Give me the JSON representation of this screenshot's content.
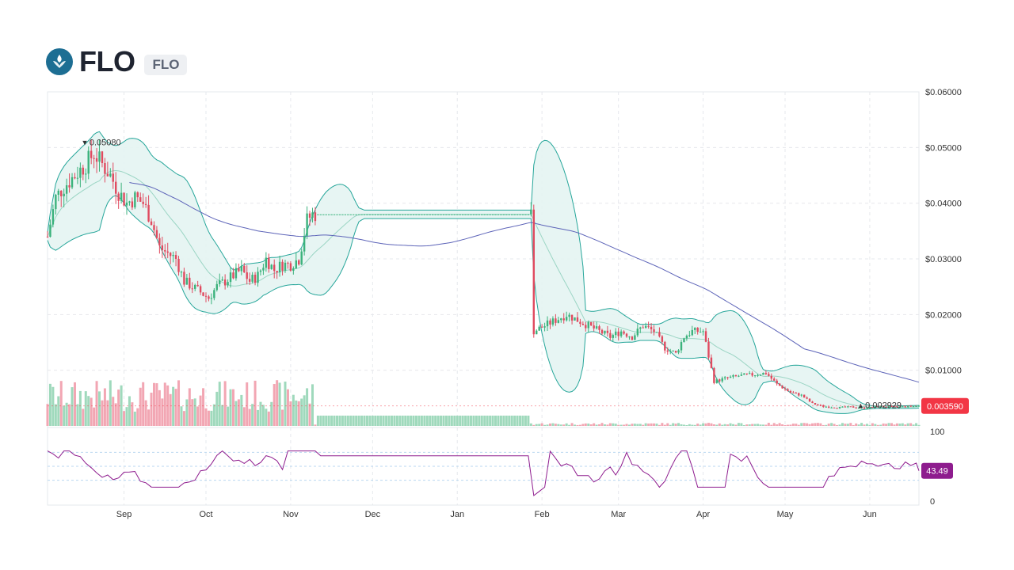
{
  "header": {
    "title": "FLO",
    "ticker": "FLO",
    "logo_icon": "flo-logo-icon"
  },
  "colors": {
    "up": "#3bb27c",
    "down": "#e04a5f",
    "up_volume": "#9fd9bc",
    "down_volume": "#f2a6b3",
    "bollinger": "#26a69a",
    "bollinger_fill": "#e4f4f2",
    "ma_long": "#5c63b8",
    "ma_short": "#9bd5c4",
    "rsi": "#8e1c8e",
    "price_badge": "#f23645",
    "grid": "#e6e8ec"
  },
  "chart_data": {
    "type": "candlestick",
    "price_axis": {
      "ylim": [
        0,
        0.06
      ],
      "ticks": [
        0.06,
        0.05,
        0.04,
        0.03,
        0.02,
        0.01
      ],
      "tick_labels": [
        "$0.06000",
        "$0.05000",
        "$0.04000",
        "$0.03000",
        "$0.02000",
        "$0.01000"
      ]
    },
    "x_axis": {
      "range": [
        "2022-08-04",
        "2023-06-19"
      ],
      "labels": [
        {
          "date": "2022-09-01",
          "text": "Sep"
        },
        {
          "date": "2022-10-01",
          "text": "Oct"
        },
        {
          "date": "2022-11-01",
          "text": "Nov"
        },
        {
          "date": "2022-12-01",
          "text": "Dec"
        },
        {
          "date": "2023-01-01",
          "text": "Jan"
        },
        {
          "date": "2023-02-01",
          "text": "Feb"
        },
        {
          "date": "2023-03-01",
          "text": "Mar"
        },
        {
          "date": "2023-04-01",
          "text": "Apr"
        },
        {
          "date": "2023-05-01",
          "text": "May"
        },
        {
          "date": "2023-06-01",
          "text": "Jun"
        }
      ]
    },
    "price_series": [
      [
        "2022-08-04",
        0.034
      ],
      [
        "2022-08-07",
        0.041
      ],
      [
        "2022-08-10",
        0.043
      ],
      [
        "2022-08-14",
        0.045
      ],
      [
        "2022-08-18",
        0.047
      ],
      [
        "2022-08-21",
        0.049
      ],
      [
        "2022-08-24",
        0.047
      ],
      [
        "2022-08-27",
        0.045
      ],
      [
        "2022-08-30",
        0.042
      ],
      [
        "2022-09-02",
        0.04
      ],
      [
        "2022-09-05",
        0.041
      ],
      [
        "2022-09-08",
        0.04
      ],
      [
        "2022-09-11",
        0.037
      ],
      [
        "2022-09-14",
        0.032
      ],
      [
        "2022-09-17",
        0.031
      ],
      [
        "2022-09-20",
        0.03
      ],
      [
        "2022-09-23",
        0.026
      ],
      [
        "2022-09-26",
        0.025
      ],
      [
        "2022-09-29",
        0.024
      ],
      [
        "2022-10-02",
        0.023
      ],
      [
        "2022-10-05",
        0.025
      ],
      [
        "2022-10-08",
        0.026
      ],
      [
        "2022-10-11",
        0.027
      ],
      [
        "2022-10-14",
        0.028
      ],
      [
        "2022-10-17",
        0.026
      ],
      [
        "2022-10-20",
        0.027
      ],
      [
        "2022-10-23",
        0.03
      ],
      [
        "2022-10-26",
        0.028
      ],
      [
        "2022-10-29",
        0.029
      ],
      [
        "2022-11-01",
        0.029
      ],
      [
        "2022-11-04",
        0.03
      ],
      [
        "2022-11-07",
        0.037
      ],
      [
        "2022-11-09",
        0.038
      ],
      [
        "2023-01-28",
        0.038
      ],
      [
        "2023-01-29",
        0.017
      ],
      [
        "2023-02-02",
        0.018
      ],
      [
        "2023-02-06",
        0.019
      ],
      [
        "2023-02-10",
        0.02
      ],
      [
        "2023-02-14",
        0.019
      ],
      [
        "2023-02-18",
        0.018
      ],
      [
        "2023-02-22",
        0.017
      ],
      [
        "2023-02-26",
        0.016
      ],
      [
        "2023-03-02",
        0.017
      ],
      [
        "2023-03-06",
        0.016
      ],
      [
        "2023-03-10",
        0.018
      ],
      [
        "2023-03-14",
        0.017
      ],
      [
        "2023-03-18",
        0.014
      ],
      [
        "2023-03-22",
        0.013
      ],
      [
        "2023-03-25",
        0.016
      ],
      [
        "2023-03-28",
        0.017
      ],
      [
        "2023-04-01",
        0.017
      ],
      [
        "2023-04-05",
        0.008
      ],
      [
        "2023-04-09",
        0.0085
      ],
      [
        "2023-04-14",
        0.009
      ],
      [
        "2023-04-19",
        0.0092
      ],
      [
        "2023-04-24",
        0.0095
      ],
      [
        "2023-04-28",
        0.0075
      ],
      [
        "2023-05-03",
        0.006
      ],
      [
        "2023-05-07",
        0.0055
      ],
      [
        "2023-05-11",
        0.004
      ],
      [
        "2023-05-15",
        0.0035
      ],
      [
        "2023-05-20",
        0.0033
      ],
      [
        "2023-05-25",
        0.0034
      ],
      [
        "2023-05-30",
        0.0032
      ],
      [
        "2023-06-05",
        0.0035
      ],
      [
        "2023-06-10",
        0.0034
      ],
      [
        "2023-06-15",
        0.0035
      ],
      [
        "2023-06-19",
        0.00359
      ]
    ],
    "annotations": {
      "high": {
        "date": "2022-08-18",
        "value": 0.0508,
        "label": "0.05080"
      },
      "low": {
        "date": "2023-05-29",
        "value": 0.002929,
        "label": "0.002929"
      }
    },
    "last_price": {
      "value": 0.00359,
      "label": "0.003590"
    },
    "rsi": {
      "levels": [
        100,
        0
      ],
      "level_labels": [
        "100",
        "0"
      ],
      "bands": [
        70,
        50,
        30
      ],
      "last": {
        "value": 43.49,
        "label": "43.49"
      }
    }
  }
}
